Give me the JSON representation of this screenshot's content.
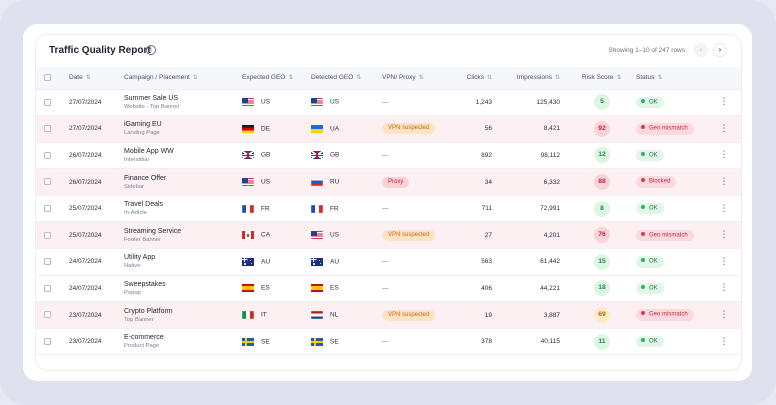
{
  "report": {
    "title": "Traffic Quality Report",
    "info_icon": "info-icon",
    "showing": "Showing 1–10 of 247 rows",
    "prev_icon": "‹",
    "next_icon": "›"
  },
  "columns": {
    "date": "Date",
    "campaign": "Campaign / Placement",
    "expected_geo": "Expected GEO",
    "detected_geo": "Detected GEO",
    "vpn_proxy": "VPN/ Proxy",
    "clicks": "Clicks",
    "impressions": "Impressions",
    "risk_score": "Risk Score",
    "status": "Status",
    "sort_icon": "⇅"
  },
  "rows": [
    {
      "date": "27/07/2024",
      "campaign": "Summer Sale US",
      "placement": "Website - Top Banner",
      "exp_flag": "us",
      "exp_geo": "US",
      "det_flag": "us",
      "det_geo": "US",
      "vpn": "—",
      "vpn_type": "none",
      "clicks": "1,243",
      "impressions": "125,430",
      "score": "5",
      "score_level": "good",
      "status": "OK",
      "status_type": "ok"
    },
    {
      "date": "27/07/2024",
      "campaign": "iGaming EU",
      "placement": "Landing Page",
      "exp_flag": "de",
      "exp_geo": "DE",
      "det_flag": "ua",
      "det_geo": "UA",
      "vpn": "VPN suspected",
      "vpn_type": "vpn",
      "clicks": "56",
      "impressions": "8,421",
      "score": "92",
      "score_level": "bad",
      "status": "Geo mismatch",
      "status_type": "geo"
    },
    {
      "date": "26/07/2024",
      "campaign": "Mobile App WW",
      "placement": "Interstitial",
      "exp_flag": "gb",
      "exp_geo": "GB",
      "det_flag": "gb",
      "det_geo": "GB",
      "vpn": "—",
      "vpn_type": "none",
      "clicks": "892",
      "impressions": "98,112",
      "score": "12",
      "score_level": "good",
      "status": "OK",
      "status_type": "ok"
    },
    {
      "date": "26/07/2024",
      "campaign": "Finance Offer",
      "placement": "Sidebar",
      "exp_flag": "us",
      "exp_geo": "US",
      "det_flag": "ru",
      "det_geo": "RU",
      "vpn": "Proxy",
      "vpn_type": "proxy",
      "clicks": "34",
      "impressions": "6,332",
      "score": "88",
      "score_level": "bad",
      "status": "Blocked",
      "status_type": "blocked"
    },
    {
      "date": "25/07/2024",
      "campaign": "Travel Deals",
      "placement": "In-Article",
      "exp_flag": "fr",
      "exp_geo": "FR",
      "det_flag": "fr",
      "det_geo": "FR",
      "vpn": "—",
      "vpn_type": "none",
      "clicks": "711",
      "impressions": "72,991",
      "score": "8",
      "score_level": "good",
      "status": "OK",
      "status_type": "ok"
    },
    {
      "date": "25/07/2024",
      "campaign": "Streaming Service",
      "placement": "Footer Banner",
      "exp_flag": "ca",
      "exp_geo": "CA",
      "det_flag": "us",
      "det_geo": "US",
      "vpn": "VPN suspected",
      "vpn_type": "vpn",
      "clicks": "27",
      "impressions": "4,201",
      "score": "76",
      "score_level": "bad",
      "status": "Geo mismatch",
      "status_type": "geo"
    },
    {
      "date": "24/07/2024",
      "campaign": "Utility App",
      "placement": "Native",
      "exp_flag": "au",
      "exp_geo": "AU",
      "det_flag": "au",
      "det_geo": "AU",
      "vpn": "—",
      "vpn_type": "none",
      "clicks": "563",
      "impressions": "61,442",
      "score": "15",
      "score_level": "good",
      "status": "OK",
      "status_type": "ok"
    },
    {
      "date": "24/07/2024",
      "campaign": "Sweepstakes",
      "placement": "Popup",
      "exp_flag": "es",
      "exp_geo": "ES",
      "det_flag": "es",
      "det_geo": "ES",
      "vpn": "—",
      "vpn_type": "none",
      "clicks": "406",
      "impressions": "44,221",
      "score": "18",
      "score_level": "good",
      "status": "OK",
      "status_type": "ok"
    },
    {
      "date": "23/07/2024",
      "campaign": "Crypto Platform",
      "placement": "Top Banner",
      "exp_flag": "it",
      "exp_geo": "IT",
      "det_flag": "nl",
      "det_geo": "NL",
      "vpn": "VPN suspected",
      "vpn_type": "vpn",
      "clicks": "19",
      "impressions": "3,887",
      "score": "69",
      "score_level": "mid",
      "status": "Geo mismatch",
      "status_type": "geo"
    },
    {
      "date": "23/07/2024",
      "campaign": "E-commerce",
      "placement": "Product Page",
      "exp_flag": "se",
      "exp_geo": "SE",
      "det_flag": "se",
      "det_geo": "SE",
      "vpn": "—",
      "vpn_type": "none",
      "clicks": "378",
      "impressions": "40,115",
      "score": "11",
      "score_level": "good",
      "status": "OK",
      "status_type": "ok"
    }
  ],
  "more_icon": "⋮"
}
